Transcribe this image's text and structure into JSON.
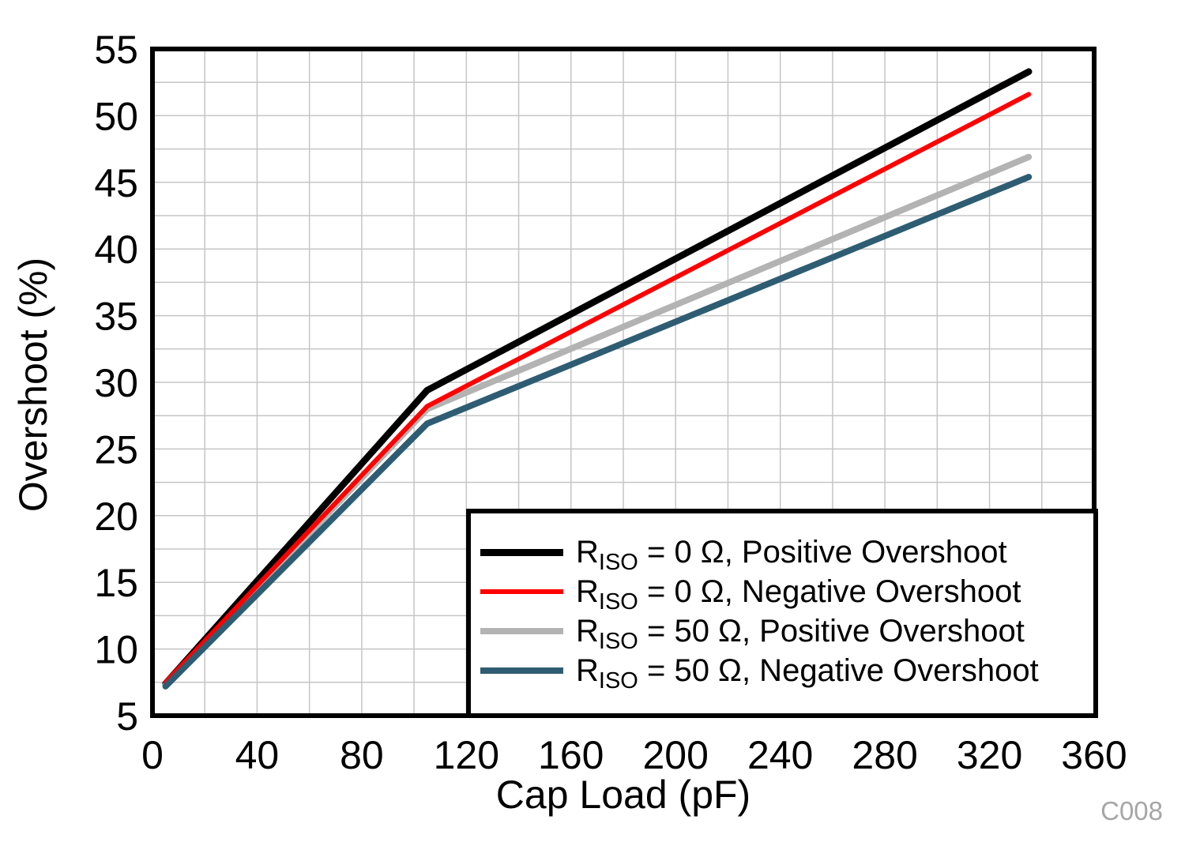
{
  "figure": {
    "watermark": "C008"
  },
  "chart_data": {
    "type": "line",
    "title": "",
    "xlabel": "Cap Load (pF)",
    "ylabel": "Overshoot (%)",
    "xlim": [
      0,
      360
    ],
    "ylim": [
      5,
      55
    ],
    "x_ticks": [
      0,
      40,
      80,
      120,
      160,
      200,
      240,
      280,
      320,
      360
    ],
    "y_ticks": [
      5,
      10,
      15,
      20,
      25,
      30,
      35,
      40,
      45,
      50,
      55
    ],
    "x_grid_step": 20,
    "y_grid_step": 2.5,
    "grid": true,
    "grid_color": "#c5c5c5",
    "axis_color": "#000000",
    "legend_position": "bottom-right",
    "x": [
      5,
      105,
      335
    ],
    "series": [
      {
        "name": "RISO = 0 Ω, Positive Overshoot",
        "label": {
          "prefix": "R",
          "sub": "ISO",
          "rest": " = 0 Ω, Positive Overshoot"
        },
        "color": "#000000",
        "width": 8.5,
        "values": [
          7.4,
          29.4,
          53.3
        ]
      },
      {
        "name": "RISO = 0 Ω, Negative Overshoot",
        "label": {
          "prefix": "R",
          "sub": "ISO",
          "rest": " = 0 Ω, Negative Overshoot"
        },
        "color": "#ff0000",
        "width": 6,
        "values": [
          7.5,
          28.2,
          51.6
        ]
      },
      {
        "name": "RISO = 50 Ω, Positive Overshoot",
        "label": {
          "prefix": "R",
          "sub": "ISO",
          "rest": " = 50 Ω, Positive Overshoot"
        },
        "color": "#b3b3b3",
        "width": 8,
        "values": [
          7.3,
          28.0,
          46.9
        ]
      },
      {
        "name": "RISO = 50 Ω, Negative Overshoot",
        "label": {
          "prefix": "R",
          "sub": "ISO",
          "rest": " = 50 Ω, Negative Overshoot"
        },
        "color": "#2e5d73",
        "width": 8,
        "values": [
          7.2,
          26.9,
          45.4
        ]
      }
    ],
    "draw_order": [
      0,
      2,
      1,
      3
    ]
  }
}
